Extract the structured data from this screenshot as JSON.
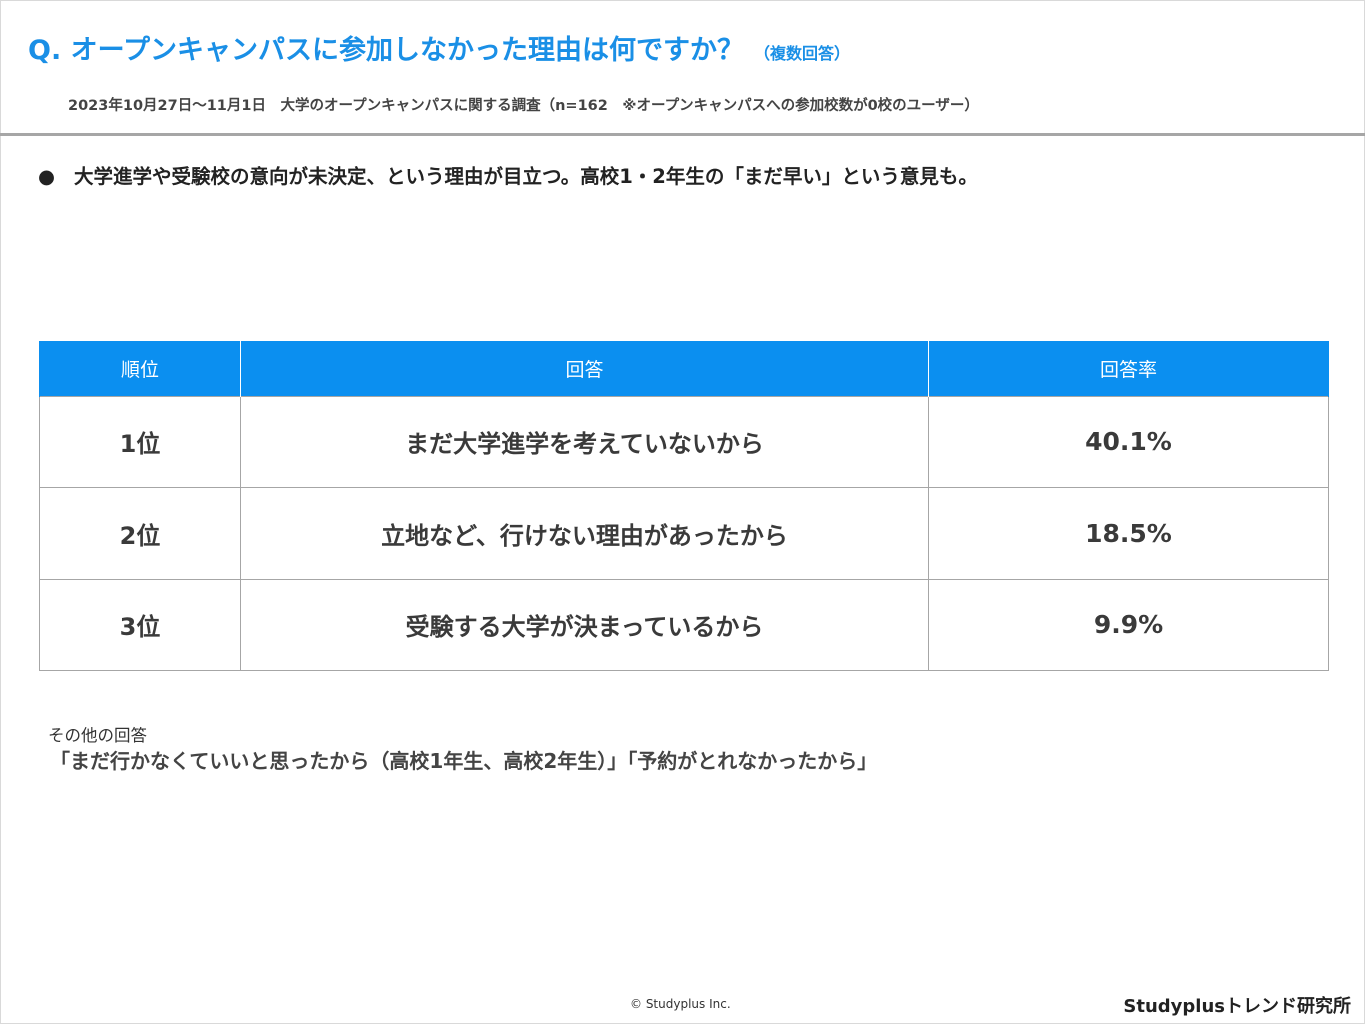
{
  "header": {
    "title": "Q. オープンキャンパスに参加しなかった理由は何ですか？",
    "title_note": "（複数回答）",
    "subtitle": "2023年10月27日〜11月1日　大学のオープンキャンパスに関する調査（n=162　※オープンキャンパスへの参加校数が0校のユーザー）"
  },
  "headline": {
    "bullet": "●",
    "text": "大学進学や受験校の意向が未決定、という理由が目立つ。高校1・2年生の「まだ早い」という意見も。"
  },
  "table": {
    "columns": [
      "順位",
      "回答",
      "回答率"
    ],
    "rows": [
      {
        "rank": "1位",
        "answer": "まだ大学進学を考えていないから",
        "rate": "40.1%"
      },
      {
        "rank": "2位",
        "answer": "立地など、行けない理由があったから",
        "rate": "18.5%"
      },
      {
        "rank": "3位",
        "answer": "受験する大学が決まっているから",
        "rate": "9.9%"
      }
    ]
  },
  "other": {
    "label": "その他の回答",
    "text": "「まだ行かなくていいと思ったから（高校1年生、高校2年生）」「予約がとれなかったから」"
  },
  "footer": {
    "copyright": "© Studyplus Inc.",
    "brand": "Studyplusトレンド研究所"
  },
  "colors": {
    "accent": "#1a8fe6",
    "table_header": "#0b8ff0",
    "divider": "#a6a6a6"
  }
}
